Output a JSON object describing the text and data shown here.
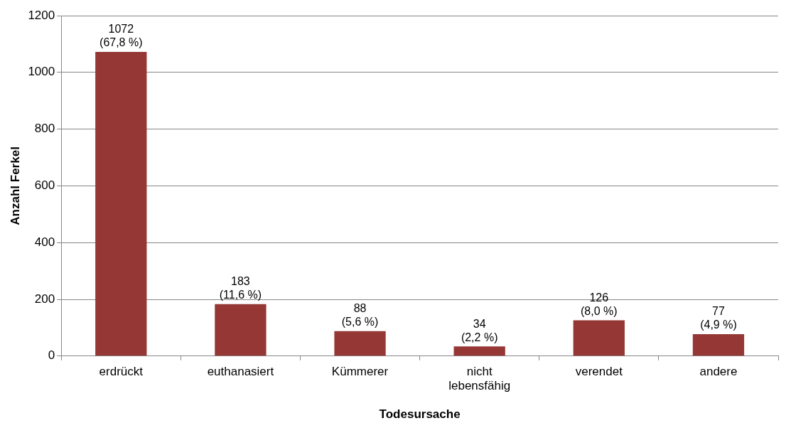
{
  "chart_data": {
    "type": "bar",
    "xlabel": "Todesursache",
    "ylabel": "Anzahl Ferkel",
    "categories": [
      "erdrückt",
      "euthanasiert",
      "Kümmerer",
      "nicht lebensfähig",
      "verendet",
      "andere"
    ],
    "values": [
      1072,
      183,
      88,
      34,
      126,
      77
    ],
    "value_labels": [
      "1072\n(67,8 %)",
      "183\n(11,6 %)",
      "88\n(5,6 %)",
      "34\n(2,2 %)",
      "126\n(8,0 %)",
      "77\n(4,9 %)"
    ],
    "color": "#953735",
    "ylim": [
      0,
      1200
    ],
    "yticks": [
      0,
      200,
      400,
      600,
      800,
      1000,
      1200
    ],
    "grid": "y",
    "legend": false
  }
}
